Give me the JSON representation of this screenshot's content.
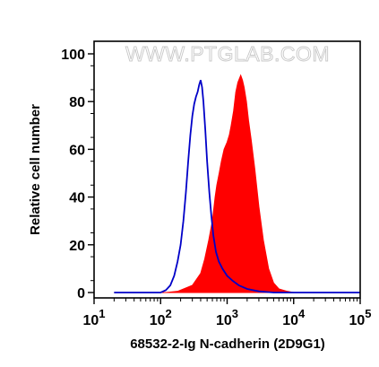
{
  "watermark": "WWW.PTGLAB.COM",
  "chart_data": {
    "type": "area",
    "title": "",
    "xlabel": "68532-2-Ig N-cadherin (2D9G1)",
    "ylabel": "Relative cell number",
    "x_scale": "log",
    "xlim": [
      10,
      100000
    ],
    "ylim": [
      0,
      100
    ],
    "x_ticks": [
      {
        "value": 10,
        "base": "10",
        "exp": "1"
      },
      {
        "value": 100,
        "base": "10",
        "exp": "2"
      },
      {
        "value": 1000,
        "base": "10",
        "exp": "3"
      },
      {
        "value": 10000,
        "base": "10",
        "exp": "4"
      },
      {
        "value": 100000,
        "base": "10",
        "exp": "5"
      }
    ],
    "y_ticks": [
      "0",
      "20",
      "40",
      "60",
      "80",
      "100"
    ],
    "grid": false,
    "legend": "none",
    "series": [
      {
        "style": "filled",
        "color": "#ff0000",
        "x": [
          20,
          120,
          180,
          300,
          400,
          460,
          530,
          600,
          660,
          700,
          760,
          820,
          900,
          1000,
          1080,
          1150,
          1250,
          1350,
          1450,
          1600,
          1700,
          1800,
          1950,
          2100,
          2300,
          2600,
          3000,
          3500,
          4200,
          5000,
          6000,
          8000,
          10000,
          20000,
          100000
        ],
        "y": [
          0,
          0,
          0.5,
          3,
          8,
          14,
          22,
          30,
          40,
          45,
          50,
          55,
          60,
          63,
          66,
          70,
          76,
          84,
          88,
          91,
          89,
          86,
          80,
          72,
          64,
          52,
          36,
          22,
          10,
          4,
          1.5,
          0.5,
          0,
          0,
          0
        ]
      },
      {
        "style": "line",
        "color": "#0000c8",
        "x": [
          20,
          100,
          120,
          140,
          160,
          180,
          200,
          220,
          240,
          260,
          280,
          300,
          320,
          340,
          360,
          380,
          400,
          420,
          440,
          470,
          500,
          540,
          580,
          620,
          680,
          750,
          850,
          1000,
          1200,
          1500,
          2000,
          3000,
          5000,
          10000,
          100000
        ],
        "y": [
          0,
          0,
          1,
          3,
          7,
          13,
          20,
          30,
          42,
          55,
          66,
          74,
          79,
          82,
          84,
          87,
          89,
          86,
          80,
          68,
          55,
          42,
          32,
          24,
          17,
          13,
          10,
          7,
          5,
          3,
          1.5,
          0.5,
          0,
          0,
          0
        ]
      }
    ]
  }
}
